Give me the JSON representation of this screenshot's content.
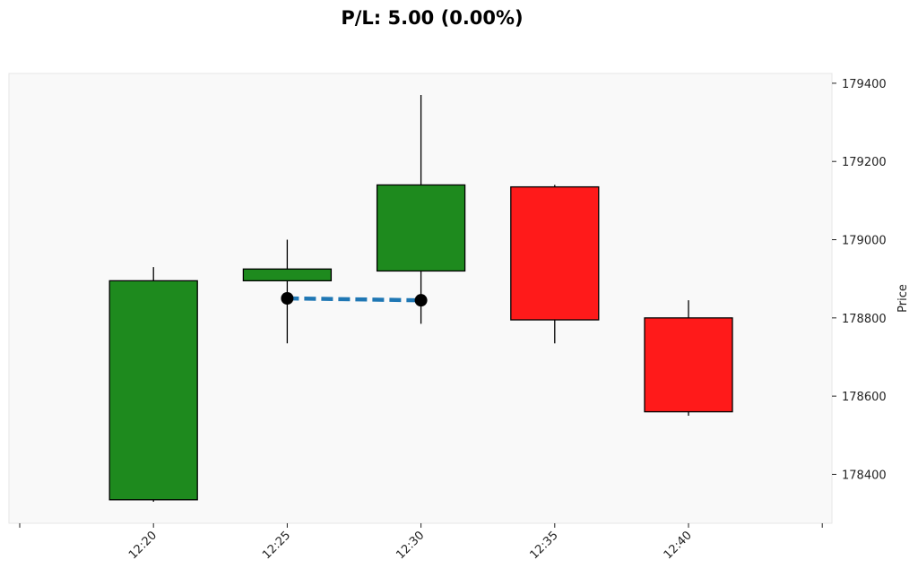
{
  "chart_data": {
    "type": "candlestick",
    "title": "P/L: 5.00 (0.00%)",
    "ylabel": "Price",
    "xlabel": "",
    "x_tick_labels": [
      "12:20",
      "12:25",
      "12:30",
      "12:35",
      "12:40"
    ],
    "y_ticks": [
      178400,
      178600,
      178800,
      179000,
      179200,
      179400
    ],
    "y_tick_labels": [
      "178400",
      "178600",
      "178800",
      "179000",
      "179200",
      "179400"
    ],
    "ylim": [
      178275,
      179425
    ],
    "candles": [
      {
        "time": "12:20",
        "open": 178335,
        "high": 178930,
        "low": 178330,
        "close": 178895,
        "direction": "up"
      },
      {
        "time": "12:25",
        "open": 178895,
        "high": 179000,
        "low": 178735,
        "close": 178925,
        "direction": "up"
      },
      {
        "time": "12:30",
        "open": 178920,
        "high": 179370,
        "low": 178785,
        "close": 179140,
        "direction": "up"
      },
      {
        "time": "12:35",
        "open": 179135,
        "high": 179140,
        "low": 178735,
        "close": 178795,
        "direction": "down"
      },
      {
        "time": "12:40",
        "open": 178800,
        "high": 178845,
        "low": 178550,
        "close": 178560,
        "direction": "down"
      }
    ],
    "trade_line": {
      "points": [
        {
          "time": "12:25",
          "price": 178850
        },
        {
          "time": "12:30",
          "price": 178845
        }
      ],
      "style": "dashed"
    },
    "grid": false,
    "colors": {
      "up": "#1e8a1e",
      "down": "#ff1a1a",
      "trade_line": "#1f77b4",
      "marker": "#000000",
      "plot_background": "#f9f9f9"
    }
  }
}
